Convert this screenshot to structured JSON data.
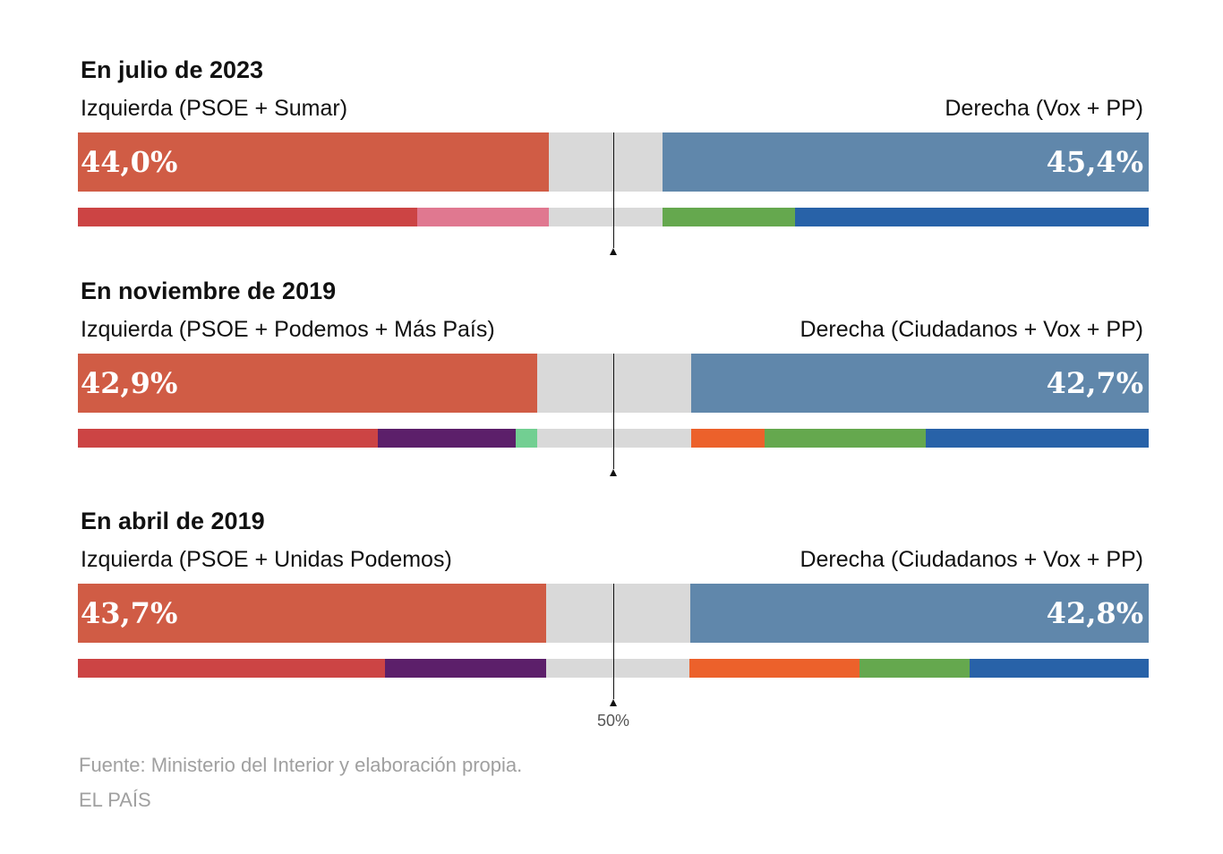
{
  "chart_data": {
    "type": "bar",
    "orientation": "horizontal-stacked",
    "xlim": [
      0,
      100
    ],
    "midline_label": "50%",
    "left_color": "#d05c45",
    "right_color": "#6087ab",
    "gap_color": "#d9d9d9",
    "panels": [
      {
        "title": "En julio de 2023",
        "left_label": "Izquierda (PSOE + Sumar)",
        "right_label": "Derecha (Vox + PP)",
        "left_value": 44.0,
        "left_text": "44,0%",
        "right_value": 45.4,
        "right_text": "45,4%",
        "left_parts": [
          {
            "value": 31.7,
            "color": "#cc4444"
          },
          {
            "value": 12.3,
            "color": "#e07890"
          }
        ],
        "right_parts": [
          {
            "value": 12.4,
            "color": "#65a84e"
          },
          {
            "value": 33.0,
            "color": "#2862a8"
          }
        ]
      },
      {
        "title": "En noviembre de 2019",
        "left_label": "Izquierda (PSOE + Podemos + Más País)",
        "right_label": "Derecha (Ciudadanos + Vox + PP)",
        "left_value": 42.9,
        "left_text": "42,9%",
        "right_value": 42.7,
        "right_text": "42,7%",
        "left_parts": [
          {
            "value": 28.0,
            "color": "#cc4444"
          },
          {
            "value": 12.9,
            "color": "#5c1f6a"
          },
          {
            "value": 2.0,
            "color": "#72cf92"
          }
        ],
        "right_parts": [
          {
            "value": 6.8,
            "color": "#ec612b"
          },
          {
            "value": 15.1,
            "color": "#65a84e"
          },
          {
            "value": 20.8,
            "color": "#2862a8"
          }
        ]
      },
      {
        "title": "En abril de 2019",
        "left_label": "Izquierda (PSOE + Unidas Podemos)",
        "right_label": "Derecha (Ciudadanos + Vox + PP)",
        "left_value": 43.7,
        "left_text": "43,7%",
        "right_value": 42.8,
        "right_text": "42,8%",
        "left_parts": [
          {
            "value": 28.7,
            "color": "#cc4444"
          },
          {
            "value": 15.0,
            "color": "#5c1f6a"
          }
        ],
        "right_parts": [
          {
            "value": 15.9,
            "color": "#ec612b"
          },
          {
            "value": 10.3,
            "color": "#65a84e"
          },
          {
            "value": 16.7,
            "color": "#2862a8"
          }
        ]
      }
    ]
  },
  "footer": {
    "source": "Fuente: Ministerio del Interior y elaboración propia.",
    "credit": "EL PAÍS"
  }
}
